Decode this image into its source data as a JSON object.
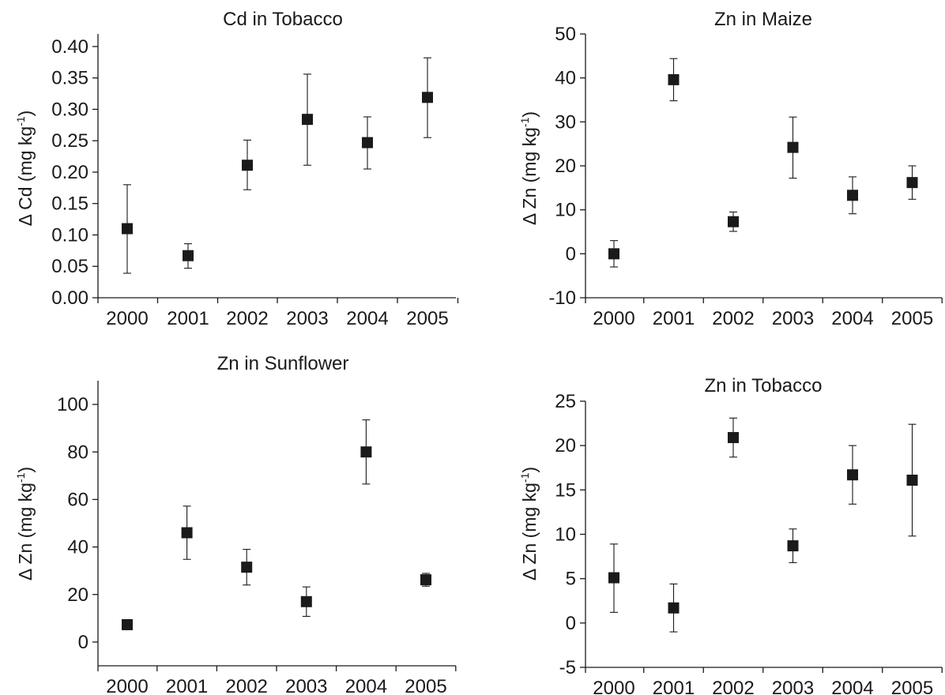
{
  "chart_data": [
    {
      "type": "scatter",
      "title": "Cd in Tobacco",
      "ylabel_prefix": "Δ  Cd (mg kg",
      "ylabel_sup": "-1",
      "ylabel_suffix": ")",
      "xlabel": "",
      "categories": [
        "2000",
        "2001",
        "2002",
        "2003",
        "2004",
        "2005"
      ],
      "ylim": [
        0,
        0.42
      ],
      "yticks": [
        0.0,
        0.05,
        0.1,
        0.15,
        0.2,
        0.25,
        0.3,
        0.35,
        0.4
      ],
      "ytick_labels": [
        "0.00",
        "0.05",
        "0.10",
        "0.15",
        "0.20",
        "0.25",
        "0.30",
        "0.35",
        "0.40"
      ],
      "values": [
        0.11,
        0.067,
        0.211,
        0.284,
        0.247,
        0.319
      ],
      "error_low": [
        0.039,
        0.047,
        0.172,
        0.211,
        0.205,
        0.255
      ],
      "error_high": [
        0.18,
        0.086,
        0.251,
        0.356,
        0.288,
        0.382
      ],
      "grid": false
    },
    {
      "type": "scatter",
      "title": "Zn in Maize",
      "ylabel_prefix": "Δ  Zn (mg kg",
      "ylabel_sup": "-1",
      "ylabel_suffix": ")",
      "xlabel": "",
      "categories": [
        "2000",
        "2001",
        "2002",
        "2003",
        "2004",
        "2005"
      ],
      "ylim": [
        -10,
        50
      ],
      "yticks": [
        -10,
        0,
        10,
        20,
        30,
        40,
        50
      ],
      "ytick_labels": [
        "-10",
        "0",
        "10",
        "20",
        "30",
        "40",
        "50"
      ],
      "values": [
        0.0,
        39.6,
        7.3,
        24.2,
        13.3,
        16.2
      ],
      "error_low": [
        -3.0,
        34.8,
        5.1,
        17.2,
        9.1,
        12.4
      ],
      "error_high": [
        3.0,
        44.4,
        9.5,
        31.1,
        17.5,
        20.0
      ],
      "grid": false
    },
    {
      "type": "scatter",
      "title": "Zn in Sunflower",
      "ylabel_prefix": "Δ  Zn (mg kg",
      "ylabel_sup": "-1",
      "ylabel_suffix": ")",
      "xlabel": "",
      "categories": [
        "2000",
        "2001",
        "2002",
        "2003",
        "2004",
        "2005"
      ],
      "ylim": [
        -10,
        110
      ],
      "yticks": [
        0,
        20,
        40,
        60,
        80,
        100
      ],
      "ytick_labels": [
        "0",
        "20",
        "40",
        "60",
        "80",
        "100"
      ],
      "values": [
        7.3,
        46.0,
        31.5,
        17.0,
        80.0,
        26.2
      ],
      "error_low": [
        5.8,
        34.8,
        24.0,
        10.8,
        66.5,
        23.5
      ],
      "error_high": [
        8.8,
        57.2,
        39.0,
        23.2,
        93.5,
        28.9
      ],
      "grid": false
    },
    {
      "type": "scatter",
      "title": "Zn in Tobacco",
      "ylabel_prefix": "Δ  Zn (mg kg",
      "ylabel_sup": "-1",
      "ylabel_suffix": ")",
      "xlabel": "",
      "categories": [
        "2000",
        "2001",
        "2002",
        "2003",
        "2004",
        "2005"
      ],
      "ylim": [
        -5,
        25
      ],
      "yticks": [
        -5,
        0,
        5,
        10,
        15,
        20,
        25
      ],
      "ytick_labels": [
        "-5",
        "0",
        "5",
        "10",
        "15",
        "20",
        "25"
      ],
      "values": [
        5.1,
        1.7,
        20.9,
        8.7,
        16.7,
        16.1
      ],
      "error_low": [
        1.2,
        -1.0,
        18.7,
        6.8,
        13.4,
        9.8
      ],
      "error_high": [
        8.9,
        4.4,
        23.1,
        10.6,
        20.0,
        22.4
      ],
      "grid": false
    }
  ]
}
